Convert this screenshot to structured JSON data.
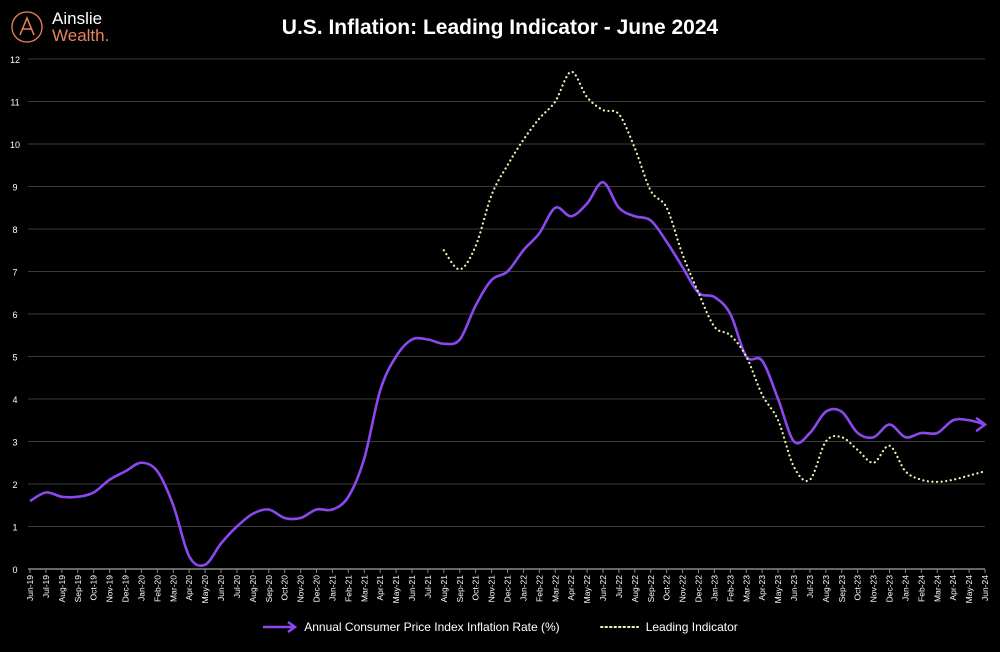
{
  "brand": {
    "line1": "Ainslie",
    "line2": "Wealth",
    "dot": "."
  },
  "colors": {
    "cpi": "#8a48ee",
    "leading": "#eef3b0",
    "grid": "#3a3a3a",
    "axis": "#888888",
    "brand_accent": "#e8845f"
  },
  "chart_data": {
    "type": "line",
    "title": "U.S. Inflation: Leading Indicator - June 2024",
    "xlabel": "",
    "ylabel": "",
    "ylim": [
      0,
      12
    ],
    "yticks": [
      0,
      1,
      2,
      3,
      4,
      5,
      6,
      7,
      8,
      9,
      10,
      11,
      12
    ],
    "grid": true,
    "legend_placement": "bottom",
    "categories": [
      "Jun-19",
      "Jul-19",
      "Aug-19",
      "Sep-19",
      "Oct-19",
      "Nov-19",
      "Dec-19",
      "Jan-20",
      "Feb-20",
      "Mar-20",
      "Apr-20",
      "May-20",
      "Jun-20",
      "Jul-20",
      "Aug-20",
      "Sep-20",
      "Oct-20",
      "Nov-20",
      "Dec-20",
      "Jan-21",
      "Feb-21",
      "Mar-21",
      "Apr-21",
      "May-21",
      "Jun-21",
      "Jul-21",
      "Aug-21",
      "Sep-21",
      "Oct-21",
      "Nov-21",
      "Dec-21",
      "Jan-22",
      "Feb-22",
      "Mar-22",
      "Apr-22",
      "May-22",
      "Jun-22",
      "Jul-22",
      "Aug-22",
      "Sep-22",
      "Oct-22",
      "Nov-22",
      "Dec-22",
      "Jan-23",
      "Feb-23",
      "Mar-23",
      "Apr-23",
      "May-23",
      "Jun-23",
      "Jul-23",
      "Aug-23",
      "Sep-23",
      "Oct-23",
      "Nov-23",
      "Dec-23",
      "Jan-24",
      "Feb-24",
      "Mar-24",
      "Apr-24",
      "May-24",
      "Jun-24"
    ],
    "series": [
      {
        "name": "Annual Consumer Price Index Inflation Rate (%)",
        "style": "solid-arrow",
        "values": [
          1.6,
          1.8,
          1.7,
          1.7,
          1.8,
          2.1,
          2.3,
          2.5,
          2.3,
          1.5,
          0.3,
          0.1,
          0.6,
          1.0,
          1.3,
          1.4,
          1.2,
          1.2,
          1.4,
          1.4,
          1.7,
          2.6,
          4.2,
          5.0,
          5.4,
          5.4,
          5.3,
          5.4,
          6.2,
          6.8,
          7.0,
          7.5,
          7.9,
          8.5,
          8.3,
          8.6,
          9.1,
          8.5,
          8.3,
          8.2,
          7.7,
          7.1,
          6.5,
          6.4,
          6.0,
          5.0,
          4.9,
          4.0,
          3.0,
          3.2,
          3.7,
          3.7,
          3.2,
          3.1,
          3.4,
          3.1,
          3.2,
          3.2,
          3.5,
          3.5,
          3.4
        ]
      },
      {
        "name": "Leading Indicator",
        "style": "dotted",
        "values": [
          null,
          null,
          null,
          null,
          null,
          null,
          null,
          null,
          null,
          null,
          null,
          null,
          null,
          null,
          null,
          null,
          null,
          null,
          null,
          null,
          null,
          null,
          null,
          null,
          null,
          null,
          7.5,
          7.05,
          7.6,
          8.8,
          9.5,
          10.1,
          10.6,
          11.0,
          11.7,
          11.1,
          10.8,
          10.7,
          9.9,
          8.9,
          8.5,
          7.4,
          6.5,
          5.7,
          5.5,
          5.0,
          4.1,
          3.5,
          2.4,
          2.1,
          3.0,
          3.1,
          2.8,
          2.5,
          2.9,
          2.3,
          2.1,
          2.05,
          2.1,
          2.2,
          2.3
        ]
      }
    ]
  }
}
